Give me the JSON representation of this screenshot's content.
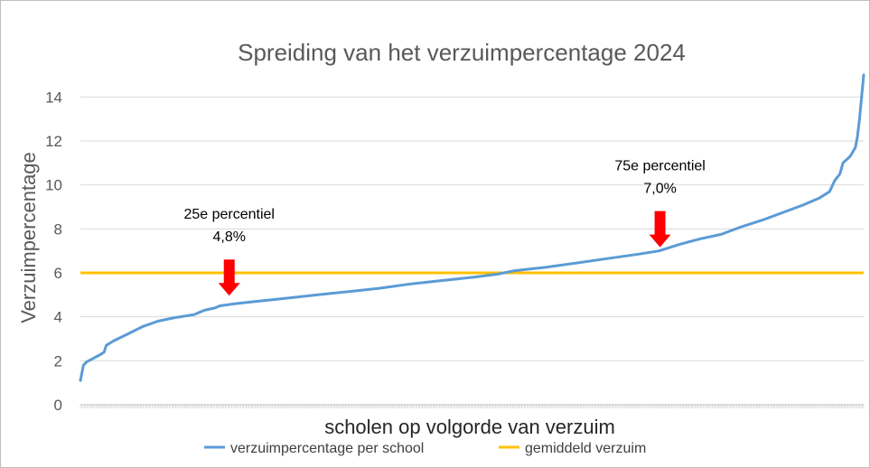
{
  "chart_data": {
    "type": "line",
    "title": "Spreiding van het verzuimpercentage 2024",
    "xlabel": "scholen op volgorde van verzuim",
    "ylabel": "Verzuimpercentage",
    "ylim": [
      0,
      15
    ],
    "yticks": [
      "0",
      "2",
      "4",
      "6",
      "8",
      "10",
      "12",
      "14"
    ],
    "grid": true,
    "legend_position": "bottom",
    "x_count": 600,
    "series": [
      {
        "name": "verzuimpercentage per school",
        "color": "#5b9bd5",
        "sorted_points": [
          [
            0,
            1.1
          ],
          [
            3,
            1.8
          ],
          [
            6,
            1.95
          ],
          [
            12,
            2.1
          ],
          [
            20,
            2.3
          ],
          [
            23,
            2.4
          ],
          [
            25,
            2.7
          ],
          [
            32,
            2.9
          ],
          [
            45,
            3.2
          ],
          [
            60,
            3.55
          ],
          [
            75,
            3.8
          ],
          [
            90,
            3.95
          ],
          [
            110,
            4.1
          ],
          [
            120,
            4.3
          ],
          [
            130,
            4.4
          ],
          [
            135,
            4.5
          ],
          [
            150,
            4.6
          ],
          [
            170,
            4.7
          ],
          [
            200,
            4.85
          ],
          [
            230,
            5.0
          ],
          [
            260,
            5.15
          ],
          [
            290,
            5.3
          ],
          [
            320,
            5.5
          ],
          [
            350,
            5.65
          ],
          [
            380,
            5.8
          ],
          [
            405,
            5.95
          ],
          [
            420,
            6.1
          ],
          [
            450,
            6.25
          ],
          [
            480,
            6.45
          ],
          [
            510,
            6.65
          ],
          [
            540,
            6.85
          ],
          [
            560,
            7.0
          ],
          [
            580,
            7.3
          ],
          [
            600,
            7.55
          ],
          [
            620,
            7.75
          ],
          [
            640,
            8.1
          ],
          [
            660,
            8.4
          ],
          [
            680,
            8.75
          ],
          [
            700,
            9.1
          ],
          [
            715,
            9.4
          ],
          [
            725,
            9.7
          ],
          [
            730,
            10.2
          ],
          [
            735,
            10.5
          ],
          [
            738,
            11.0
          ],
          [
            745,
            11.3
          ],
          [
            750,
            11.7
          ],
          [
            752,
            12.2
          ],
          [
            754,
            13.0
          ],
          [
            756,
            14.0
          ],
          [
            758,
            15.0
          ]
        ]
      },
      {
        "name": "gemiddeld verzuim",
        "color": "#ffc000",
        "value": 6.0
      }
    ],
    "annotations": [
      {
        "label": "25e percentiel",
        "value_text": "4,8%",
        "x_at": 0.19,
        "y_at": 4.8
      },
      {
        "label": "75e percentiel",
        "value_text": "7,0%",
        "x_at": 0.74,
        "y_at": 7.0
      }
    ]
  },
  "colors": {
    "arrow": "#ff0000",
    "gridline": "#d9d9d9",
    "axis": "#bfbfbf"
  }
}
